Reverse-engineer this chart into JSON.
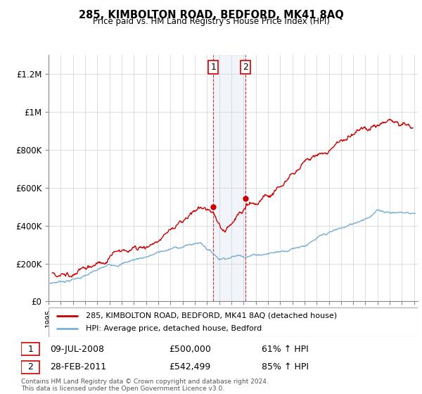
{
  "title": "285, KIMBOLTON ROAD, BEDFORD, MK41 8AQ",
  "subtitle": "Price paid vs. HM Land Registry's House Price Index (HPI)",
  "legend_line1": "285, KIMBOLTON ROAD, BEDFORD, MK41 8AQ (detached house)",
  "legend_line2": "HPI: Average price, detached house, Bedford",
  "annotation1_date": "09-JUL-2008",
  "annotation1_price": "£500,000",
  "annotation1_hpi": "61% ↑ HPI",
  "annotation2_date": "28-FEB-2011",
  "annotation2_price": "£542,499",
  "annotation2_hpi": "85% ↑ HPI",
  "footer": "Contains HM Land Registry data © Crown copyright and database right 2024.\nThis data is licensed under the Open Government Licence v3.0.",
  "red_color": "#cc0000",
  "blue_color": "#7aafd4",
  "annotation_box_color": "#c8d8e8",
  "ylim": [
    0,
    1300000
  ],
  "yticks": [
    0,
    200000,
    400000,
    600000,
    800000,
    1000000,
    1200000
  ],
  "ytick_labels": [
    "£0",
    "£200K",
    "£400K",
    "£600K",
    "£800K",
    "£1M",
    "£1.2M"
  ],
  "marker1_x": 2008.52,
  "marker1_y": 500000,
  "marker2_x": 2011.16,
  "marker2_y": 542499,
  "vline1_x": 2008.52,
  "vline2_x": 2011.16,
  "xmin": 1995.0,
  "xmax": 2025.3
}
